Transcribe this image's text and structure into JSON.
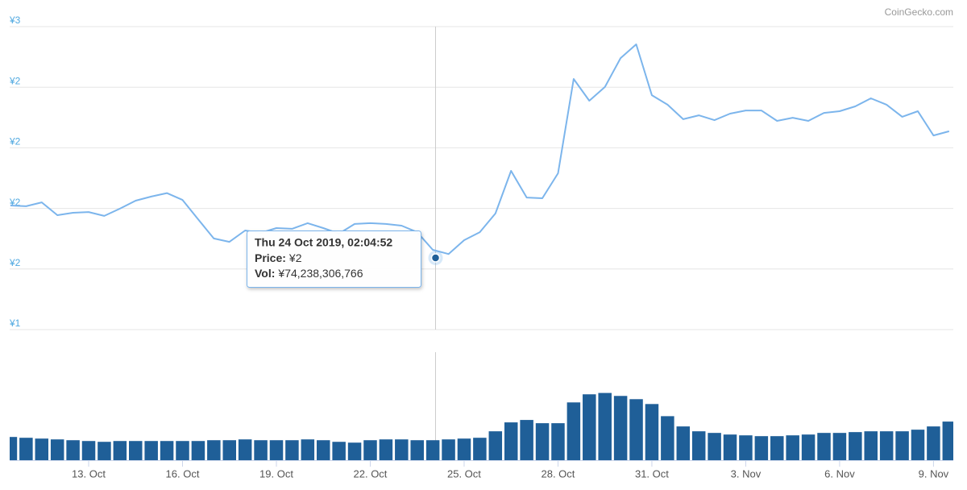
{
  "chart_data": {
    "type": "line",
    "source": "CoinGecko.com",
    "xlim": [
      "2019-10-10T11:25",
      "2019-11-09T15:12"
    ],
    "ylim": [
      1.25,
      2.5
    ],
    "yticks": [
      {
        "value": 1.25,
        "label": "¥1"
      },
      {
        "value": 1.5,
        "label": "¥2"
      },
      {
        "value": 1.75,
        "label": "¥2"
      },
      {
        "value": 2,
        "label": "¥2"
      },
      {
        "value": 2.25,
        "label": "¥2"
      },
      {
        "value": 2.5,
        "label": "¥3"
      }
    ],
    "xticks": [
      {
        "value": "2019-10-13T00:00",
        "label": "13. Oct"
      },
      {
        "value": "2019-10-16T00:00",
        "label": "16. Oct"
      },
      {
        "value": "2019-10-19T00:00",
        "label": "19. Oct"
      },
      {
        "value": "2019-10-22T00:00",
        "label": "22. Oct"
      },
      {
        "value": "2019-10-25T00:00",
        "label": "25. Oct"
      },
      {
        "value": "2019-10-28T00:00",
        "label": "28. Oct"
      },
      {
        "value": "2019-10-31T00:00",
        "label": "31. Oct"
      },
      {
        "value": "2019-11-03T00:00",
        "label": "3. Nov"
      },
      {
        "value": "2019-11-06T00:00",
        "label": "6. Nov"
      },
      {
        "value": "2019-11-09T00:00",
        "label": "9. Nov"
      }
    ],
    "grid": true,
    "x": [
      "2019-10-10T12:00",
      "2019-10-11T00:00",
      "2019-10-11T12:00",
      "2019-10-12T00:00",
      "2019-10-12T12:00",
      "2019-10-13T00:00",
      "2019-10-13T12:00",
      "2019-10-14T00:00",
      "2019-10-14T12:00",
      "2019-10-15T00:00",
      "2019-10-15T12:00",
      "2019-10-16T00:00",
      "2019-10-16T12:00",
      "2019-10-17T00:00",
      "2019-10-17T12:00",
      "2019-10-18T00:00",
      "2019-10-18T12:00",
      "2019-10-19T00:00",
      "2019-10-19T12:00",
      "2019-10-20T00:00",
      "2019-10-20T12:00",
      "2019-10-21T00:00",
      "2019-10-21T12:00",
      "2019-10-22T00:00",
      "2019-10-22T12:00",
      "2019-10-23T00:00",
      "2019-10-23T12:00",
      "2019-10-24T00:00",
      "2019-10-24T12:00",
      "2019-10-25T00:00",
      "2019-10-25T12:00",
      "2019-10-26T00:00",
      "2019-10-26T12:00",
      "2019-10-27T00:00",
      "2019-10-27T12:00",
      "2019-10-28T00:00",
      "2019-10-28T12:00",
      "2019-10-29T00:00",
      "2019-10-29T12:00",
      "2019-10-30T00:00",
      "2019-10-30T12:00",
      "2019-10-31T00:00",
      "2019-10-31T12:00",
      "2019-11-01T00:00",
      "2019-11-01T12:00",
      "2019-11-02T00:00",
      "2019-11-02T12:00",
      "2019-11-03T00:00",
      "2019-11-03T12:00",
      "2019-11-04T00:00",
      "2019-11-04T12:00",
      "2019-11-05T00:00",
      "2019-11-05T12:00",
      "2019-11-06T00:00",
      "2019-11-06T12:00",
      "2019-11-07T00:00",
      "2019-11-07T12:00",
      "2019-11-08T00:00",
      "2019-11-08T12:00",
      "2019-11-09T00:00",
      "2019-11-09T12:00"
    ],
    "price": {
      "color": "#7cb5ec",
      "values": [
        1.762,
        1.759,
        1.775,
        1.722,
        1.732,
        1.735,
        1.719,
        1.749,
        1.782,
        1.799,
        1.813,
        1.785,
        1.705,
        1.626,
        1.612,
        1.659,
        1.649,
        1.669,
        1.666,
        1.689,
        1.669,
        1.646,
        1.686,
        1.689,
        1.686,
        1.679,
        1.652,
        1.579,
        1.562,
        1.619,
        1.652,
        1.729,
        1.905,
        1.795,
        1.792,
        1.895,
        2.284,
        2.194,
        2.251,
        2.37,
        2.427,
        2.217,
        2.178,
        2.118,
        2.134,
        2.114,
        2.141,
        2.154,
        2.154,
        2.111,
        2.124,
        2.111,
        2.144,
        2.151,
        2.171,
        2.204,
        2.178,
        2.128,
        2.151,
        2.051,
        2.068
      ]
    },
    "volume": {
      "color": "#1f5f98",
      "ylim": [
        0,
        400000000000
      ],
      "values": [
        86000000000,
        83000000000,
        80000000000,
        77000000000,
        74000000000,
        71000000000,
        68000000000,
        71000000000,
        71000000000,
        71000000000,
        71000000000,
        71000000000,
        71000000000,
        74000000000,
        74000000000,
        77000000000,
        74000000000,
        74000000000,
        74000000000,
        77000000000,
        74000000000,
        68000000000,
        65000000000,
        74000000000,
        77000000000,
        77000000000,
        74000000000,
        74000000000,
        77000000000,
        80000000000,
        83000000000,
        107000000000,
        140000000000,
        149000000000,
        137000000000,
        137000000000,
        214000000000,
        244000000000,
        249000000000,
        238000000000,
        226000000000,
        208000000000,
        163000000000,
        125000000000,
        107000000000,
        101000000000,
        95000000000,
        92000000000,
        89000000000,
        89000000000,
        92000000000,
        95000000000,
        101000000000,
        101000000000,
        104000000000,
        107000000000,
        107000000000,
        107000000000,
        113000000000,
        125000000000,
        143000000000
      ]
    },
    "tooltip": {
      "x": "2019-10-24T02:04:52",
      "title": "Thu 24 Oct 2019, 02:04:52",
      "price_label": "Price:",
      "price": {
        "value": 1.546,
        "label": "¥2"
      },
      "vol_label": "Vol:",
      "vol": {
        "value": 74238306766,
        "label": "¥74,238,306,766"
      }
    }
  }
}
